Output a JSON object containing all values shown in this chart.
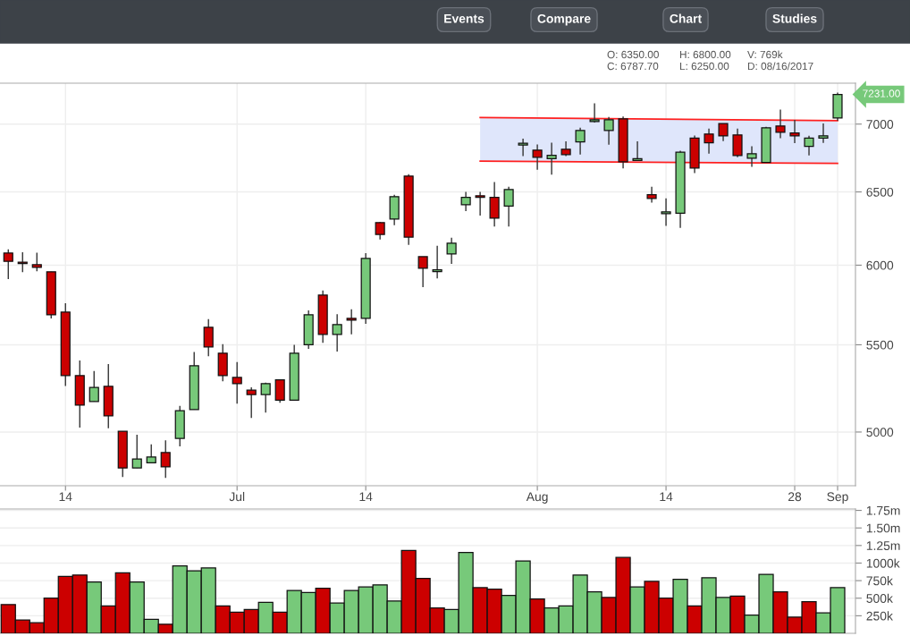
{
  "chart_data": [
    {
      "type": "candlestick",
      "log": true,
      "grid": true,
      "categories": [
        null,
        null,
        null,
        null,
        "14",
        null,
        null,
        null,
        null,
        null,
        null,
        null,
        null,
        null,
        null,
        null,
        "Jul",
        null,
        null,
        null,
        null,
        null,
        null,
        null,
        null,
        "14",
        null,
        null,
        null,
        null,
        null,
        null,
        null,
        null,
        null,
        null,
        null,
        "Aug",
        null,
        null,
        null,
        null,
        null,
        null,
        null,
        null,
        "14",
        null,
        null,
        null,
        null,
        null,
        null,
        null,
        null,
        "28",
        null,
        null,
        "Sep"
      ],
      "ohlc": [
        [
          6080,
          6105,
          5910,
          6025
        ],
        [
          6020,
          6085,
          5955,
          6010
        ],
        [
          6003,
          6082,
          5960,
          5985
        ],
        [
          5957,
          5957,
          5660,
          5683
        ],
        [
          5700,
          5756,
          5258,
          5318
        ],
        [
          5318,
          5407,
          5024,
          5149
        ],
        [
          5170,
          5345,
          5170,
          5250
        ],
        [
          5256,
          5386,
          5020,
          5089
        ],
        [
          5004,
          5004,
          4760,
          4807
        ],
        [
          4807,
          4985,
          4807,
          4855
        ],
        [
          4835,
          4933,
          4835,
          4865
        ],
        [
          4889,
          4955,
          4755,
          4813
        ],
        [
          4965,
          5145,
          4922,
          5118
        ],
        [
          5124,
          5457,
          5124,
          5375
        ],
        [
          5606,
          5656,
          5432,
          5487
        ],
        [
          5450,
          5504,
          5285,
          5318
        ],
        [
          5307,
          5397,
          5157,
          5271
        ],
        [
          5234,
          5250,
          5077,
          5209
        ],
        [
          5209,
          5277,
          5107,
          5272
        ],
        [
          5293,
          5293,
          5162,
          5177
        ],
        [
          5177,
          5500,
          5177,
          5450
        ],
        [
          5500,
          5710,
          5475,
          5683
        ],
        [
          5807,
          5836,
          5512,
          5563
        ],
        [
          5563,
          5687,
          5460,
          5623
        ],
        [
          5661,
          5717,
          5563,
          5650
        ],
        [
          5661,
          6080,
          5628,
          6044
        ],
        [
          6286,
          6290,
          6170,
          6205
        ],
        [
          6310,
          6480,
          6268,
          6467
        ],
        [
          6614,
          6627,
          6134,
          6187
        ],
        [
          6056,
          6056,
          5858,
          5980
        ],
        [
          5958,
          6128,
          5914,
          5970
        ],
        [
          6074,
          6182,
          6008,
          6146
        ],
        [
          6410,
          6500,
          6365,
          6461
        ],
        [
          6473,
          6500,
          6334,
          6461
        ],
        [
          6461,
          6570,
          6259,
          6316
        ],
        [
          6400,
          6537,
          6259,
          6517
        ],
        [
          6842,
          6890,
          6760,
          6855
        ],
        [
          6804,
          6846,
          6659,
          6751
        ],
        [
          6740,
          6860,
          6623,
          6766
        ],
        [
          6810,
          6869,
          6760,
          6771
        ],
        [
          6865,
          6972,
          6771,
          6952
        ],
        [
          7019,
          7160,
          7012,
          7033
        ],
        [
          6952,
          7054,
          6845,
          7033
        ],
        [
          7040,
          7058,
          6670,
          6718
        ],
        [
          6727,
          6869,
          6727,
          6740
        ],
        [
          6480,
          6537,
          6425,
          6454
        ],
        [
          6348,
          6455,
          6263,
          6360
        ],
        [
          6350,
          6800,
          6250,
          6787.7
        ],
        [
          6893,
          6913,
          6635,
          6672
        ],
        [
          6925,
          6965,
          6778,
          6858
        ],
        [
          7005,
          7005,
          6871,
          6910
        ],
        [
          6918,
          6965,
          6751,
          6764
        ],
        [
          6744,
          6832,
          6680,
          6777
        ],
        [
          6712,
          6979,
          6712,
          6972
        ],
        [
          6986,
          7112,
          6893,
          6938
        ],
        [
          6932,
          7033,
          6856,
          6911
        ],
        [
          6832,
          6911,
          6764,
          6893
        ],
        [
          6893,
          7005,
          6858,
          6911
        ],
        [
          7047,
          7245,
          7026,
          7231
        ]
      ],
      "colors": [
        "#cc0000",
        "#cc0000",
        "#cc0000",
        "#cc0000",
        "#cc0000",
        "#cc0000",
        "#77c97a",
        "#cc0000",
        "#cc0000",
        "#77c97a",
        "#77c97a",
        "#cc0000",
        "#77c97a",
        "#77c97a",
        "#cc0000",
        "#cc0000",
        "#cc0000",
        "#cc0000",
        "#77c97a",
        "#cc0000",
        "#77c97a",
        "#77c97a",
        "#cc0000",
        "#77c97a",
        "#cc0000",
        "#77c97a",
        "#cc0000",
        "#77c97a",
        "#cc0000",
        "#cc0000",
        "#77c97a",
        "#77c97a",
        "#77c97a",
        "#cc0000",
        "#cc0000",
        "#77c97a",
        "#77c97a",
        "#cc0000",
        "#77c97a",
        "#cc0000",
        "#77c97a",
        "#77c97a",
        "#77c97a",
        "#cc0000",
        "#77c97a",
        "#cc0000",
        "#77c97a",
        "#77c97a",
        "#cc0000",
        "#cc0000",
        "#cc0000",
        "#cc0000",
        "#77c97a",
        "#77c97a",
        "#cc0000",
        "#cc0000",
        "#77c97a",
        "#77c97a",
        "#77c97a"
      ],
      "series": [
        {
          "type": "line",
          "color": "#ff2020",
          "values": [
            null,
            null,
            null,
            null,
            null,
            null,
            null,
            null,
            null,
            null,
            null,
            null,
            null,
            null,
            null,
            null,
            null,
            null,
            null,
            null,
            null,
            null,
            null,
            null,
            null,
            null,
            null,
            null,
            null,
            null,
            null,
            null,
            null,
            7050,
            null,
            null,
            null,
            null,
            null,
            null,
            null,
            null,
            null,
            null,
            null,
            null,
            null,
            null,
            null,
            null,
            null,
            null,
            null,
            null,
            null,
            null,
            null,
            null,
            7026
          ]
        },
        {
          "type": "line",
          "color": "#ff2020",
          "values": [
            null,
            null,
            null,
            null,
            null,
            null,
            null,
            null,
            null,
            null,
            null,
            null,
            null,
            null,
            null,
            null,
            null,
            null,
            null,
            null,
            null,
            null,
            null,
            null,
            null,
            null,
            null,
            null,
            null,
            null,
            null,
            null,
            null,
            6722,
            null,
            null,
            null,
            null,
            null,
            null,
            null,
            null,
            null,
            null,
            null,
            null,
            null,
            null,
            null,
            null,
            null,
            null,
            null,
            null,
            null,
            null,
            null,
            null,
            6706
          ]
        }
      ],
      "ylim": [
        4715,
        7320
      ],
      "yticks": [
        5000,
        5500,
        6000,
        6500,
        7000
      ],
      "annotations": [
        "Events",
        "Compare",
        "Chart",
        "Studies",
        "O: 6350.00",
        "C: 6787.70",
        "H: 6800.00",
        "L: 6250.00",
        "V: 769k",
        "D: 08/16/2017",
        "7231.00"
      ]
    },
    {
      "type": "bar",
      "grid": "y",
      "tick_labels": "y",
      "categories": [
        null,
        null,
        null,
        null,
        null,
        null,
        null,
        null,
        null,
        null,
        null,
        null,
        null,
        null,
        null,
        null,
        null,
        null,
        null,
        null,
        null,
        null,
        null,
        null,
        null,
        null,
        null,
        null,
        null,
        null,
        null,
        null,
        null,
        null,
        null,
        null,
        null,
        null,
        null,
        null,
        null,
        null,
        null,
        null,
        null,
        null,
        null,
        null,
        null,
        null,
        null,
        null,
        null,
        null,
        null,
        null,
        null,
        null,
        null
      ],
      "values": [
        410000,
        190000,
        150000,
        500000,
        810000,
        830000,
        730000,
        390000,
        860000,
        730000,
        200000,
        130000,
        960000,
        890000,
        930000,
        390000,
        300000,
        340000,
        440000,
        300000,
        610000,
        580000,
        640000,
        430000,
        610000,
        660000,
        690000,
        460000,
        1180000,
        780000,
        360000,
        340000,
        1150000,
        650000,
        630000,
        540000,
        1030000,
        490000,
        360000,
        390000,
        830000,
        590000,
        510000,
        1080000,
        660000,
        740000,
        500000,
        770000,
        390000,
        790000,
        510000,
        530000,
        260000,
        840000,
        590000,
        230000,
        450000,
        290000,
        650000
      ],
      "colors": [
        "#cc0000",
        "#cc0000",
        "#cc0000",
        "#cc0000",
        "#cc0000",
        "#cc0000",
        "#77c97a",
        "#cc0000",
        "#cc0000",
        "#77c97a",
        "#77c97a",
        "#cc0000",
        "#77c97a",
        "#77c97a",
        "#77c97a",
        "#cc0000",
        "#cc0000",
        "#cc0000",
        "#77c97a",
        "#cc0000",
        "#77c97a",
        "#77c97a",
        "#cc0000",
        "#77c97a",
        "#77c97a",
        "#77c97a",
        "#77c97a",
        "#77c97a",
        "#cc0000",
        "#cc0000",
        "#cc0000",
        "#77c97a",
        "#77c97a",
        "#cc0000",
        "#cc0000",
        "#77c97a",
        "#77c97a",
        "#cc0000",
        "#77c97a",
        "#77c97a",
        "#77c97a",
        "#77c97a",
        "#cc0000",
        "#cc0000",
        "#77c97a",
        "#cc0000",
        "#cc0000",
        "#77c97a",
        "#cc0000",
        "#77c97a",
        "#77c97a",
        "#cc0000",
        "#77c97a",
        "#77c97a",
        "#cc0000",
        "#cc0000",
        "#cc0000",
        "#77c97a",
        "#77c97a"
      ],
      "ylim": [
        0,
        1770000
      ],
      "yticks": [
        {
          "value": 250000,
          "label": "250k"
        },
        {
          "value": 500000,
          "label": "500k"
        },
        {
          "value": 750000,
          "label": "750k"
        },
        {
          "value": 1000000,
          "label": "1000k"
        },
        {
          "value": 1250000,
          "label": "1.25m"
        },
        {
          "value": 1500000,
          "label": "1.50m"
        },
        {
          "value": 1750000,
          "label": "1.75m"
        }
      ]
    }
  ]
}
